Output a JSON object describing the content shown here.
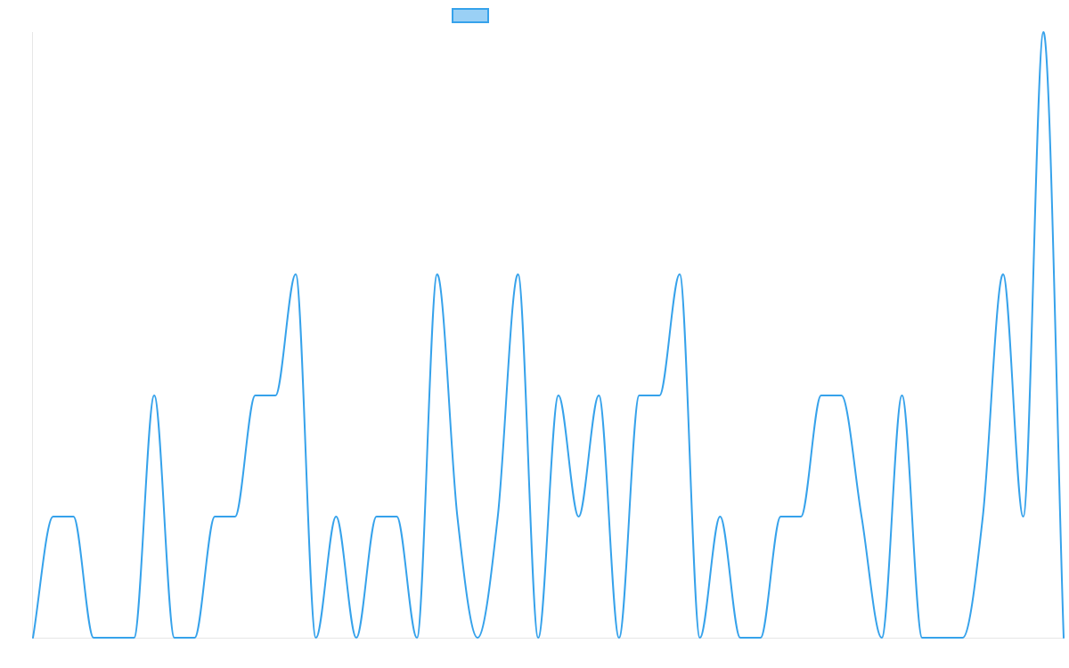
{
  "chart_data": {
    "type": "line",
    "title": "",
    "xlabel": "",
    "ylabel": "",
    "x": [
      0,
      1,
      2,
      3,
      4,
      5,
      6,
      7,
      8,
      9,
      10,
      11,
      12,
      13,
      14,
      15,
      16,
      17,
      18,
      19,
      20,
      21,
      22,
      23,
      24,
      25,
      26,
      27,
      28,
      29,
      30,
      31,
      32,
      33,
      34,
      35,
      36,
      37,
      38,
      39,
      40,
      41,
      42,
      43,
      44,
      45,
      46,
      47,
      48,
      49,
      50,
      51
    ],
    "ylim": [
      0,
      5
    ],
    "grid": false,
    "legend_position": "top",
    "colors": {
      "line": "#36a2eb",
      "legend_fill": "#9ad0f5",
      "axis": "#e6e6e6"
    },
    "series": [
      {
        "name": "",
        "values": [
          0,
          1,
          1,
          0,
          0,
          0,
          2,
          0,
          0,
          1,
          1,
          2,
          2,
          3,
          0,
          1,
          0,
          1,
          1,
          0,
          3,
          1,
          0,
          1,
          3,
          0,
          2,
          1,
          2,
          0,
          2,
          2,
          3,
          0,
          1,
          0,
          0,
          1,
          1,
          2,
          2,
          1,
          0,
          2,
          0,
          0,
          0,
          1,
          3,
          1,
          5,
          0
        ]
      }
    ]
  }
}
